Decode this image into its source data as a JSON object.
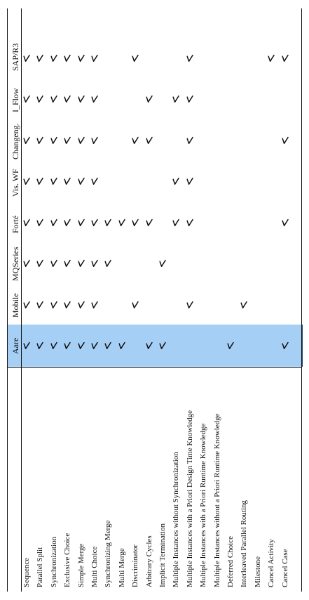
{
  "table": {
    "highlight_color": "#a6cff5",
    "highlight_column": "Aare",
    "columns": [
      "Aare",
      "Mobile",
      "MQSeries",
      "Forté",
      "Vis. WF",
      "Changeng.",
      "I_Flow",
      "SAP/R3"
    ],
    "rows": [
      {
        "pattern": "Sequence",
        "checks": [
          true,
          true,
          true,
          true,
          true,
          true,
          true,
          true
        ]
      },
      {
        "pattern": "Parallel Split",
        "checks": [
          true,
          true,
          true,
          true,
          true,
          true,
          true,
          true
        ]
      },
      {
        "pattern": "Synchronization",
        "checks": [
          true,
          true,
          true,
          true,
          true,
          true,
          true,
          true
        ]
      },
      {
        "pattern": "Exclusive Choice",
        "checks": [
          true,
          true,
          true,
          true,
          true,
          true,
          true,
          true
        ]
      },
      {
        "pattern": "Simple Merge",
        "checks": [
          true,
          true,
          true,
          true,
          true,
          true,
          true,
          true
        ]
      },
      {
        "pattern": "Multi Choice",
        "checks": [
          true,
          true,
          true,
          true,
          true,
          true,
          true,
          true
        ]
      },
      {
        "pattern": "Synchronizing Merge",
        "checks": [
          true,
          false,
          true,
          true,
          false,
          false,
          false,
          false
        ]
      },
      {
        "pattern": "Multi Merge",
        "checks": [
          true,
          false,
          false,
          true,
          false,
          false,
          false,
          false
        ]
      },
      {
        "pattern": "Discriminator",
        "checks": [
          false,
          true,
          false,
          true,
          false,
          true,
          false,
          true
        ]
      },
      {
        "pattern": "Arbitrary Cycles",
        "checks": [
          true,
          false,
          false,
          true,
          false,
          true,
          true,
          false
        ]
      },
      {
        "pattern": "Implicit Termination",
        "checks": [
          true,
          false,
          true,
          false,
          false,
          false,
          false,
          false
        ]
      },
      {
        "pattern": "Multiple Instances without Synchronization",
        "checks": [
          false,
          false,
          false,
          true,
          true,
          false,
          true,
          false
        ]
      },
      {
        "pattern": "Multiple Instances with a Priori Design Time Knowledge",
        "checks": [
          false,
          true,
          false,
          true,
          true,
          true,
          true,
          true
        ]
      },
      {
        "pattern": "Multiple Instances with a Priori Runtime Knowledge",
        "checks": [
          false,
          false,
          false,
          false,
          false,
          false,
          false,
          false
        ]
      },
      {
        "pattern": "Multiple Instances without a Priori Runtime Knowledge",
        "checks": [
          false,
          false,
          false,
          false,
          false,
          false,
          false,
          false
        ]
      },
      {
        "pattern": "Deferred Choice",
        "checks": [
          true,
          false,
          false,
          false,
          false,
          false,
          false,
          false
        ]
      },
      {
        "pattern": "Interleaved Parallel Routing",
        "checks": [
          false,
          true,
          false,
          false,
          false,
          false,
          false,
          false
        ]
      },
      {
        "pattern": "Milestone",
        "checks": [
          false,
          false,
          false,
          false,
          false,
          false,
          false,
          false
        ]
      },
      {
        "pattern": "Cancel Activity",
        "checks": [
          false,
          false,
          false,
          false,
          false,
          false,
          false,
          true
        ]
      },
      {
        "pattern": "Cancel Case",
        "checks": [
          true,
          false,
          false,
          true,
          false,
          true,
          false,
          true
        ]
      }
    ]
  }
}
